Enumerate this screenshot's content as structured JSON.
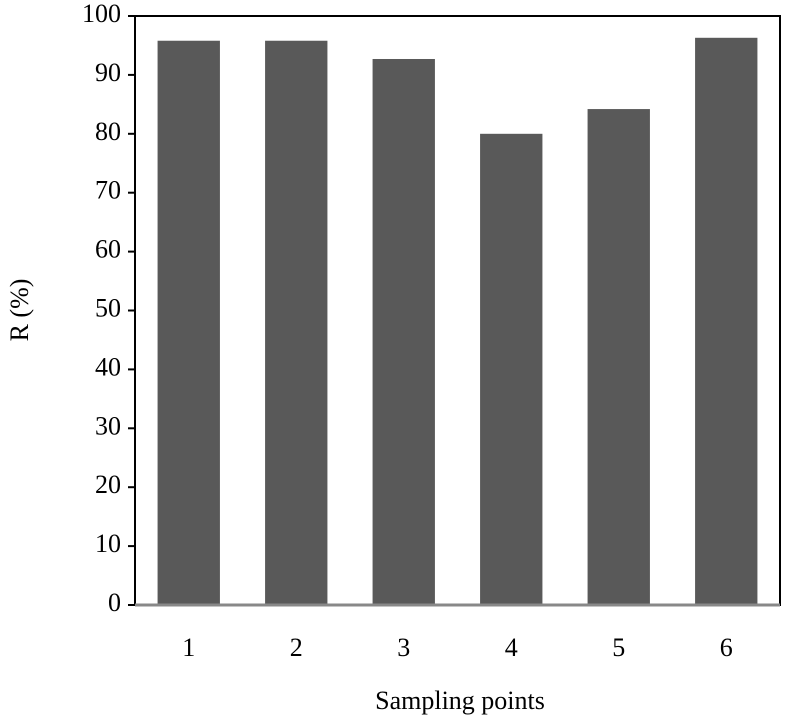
{
  "chart_data": {
    "type": "bar",
    "x_label": "Sampling points",
    "y_label": "R (%)",
    "categories": [
      "1",
      "2",
      "3",
      "4",
      "5",
      "6"
    ],
    "values": [
      95.8,
      95.8,
      92.7,
      80,
      84.2,
      96.3
    ],
    "color": "#595959",
    "ylim": [
      0,
      100
    ],
    "yticks": [
      0,
      10,
      20,
      30,
      40,
      50,
      60,
      70,
      80,
      90,
      100
    ],
    "grid": false
  }
}
